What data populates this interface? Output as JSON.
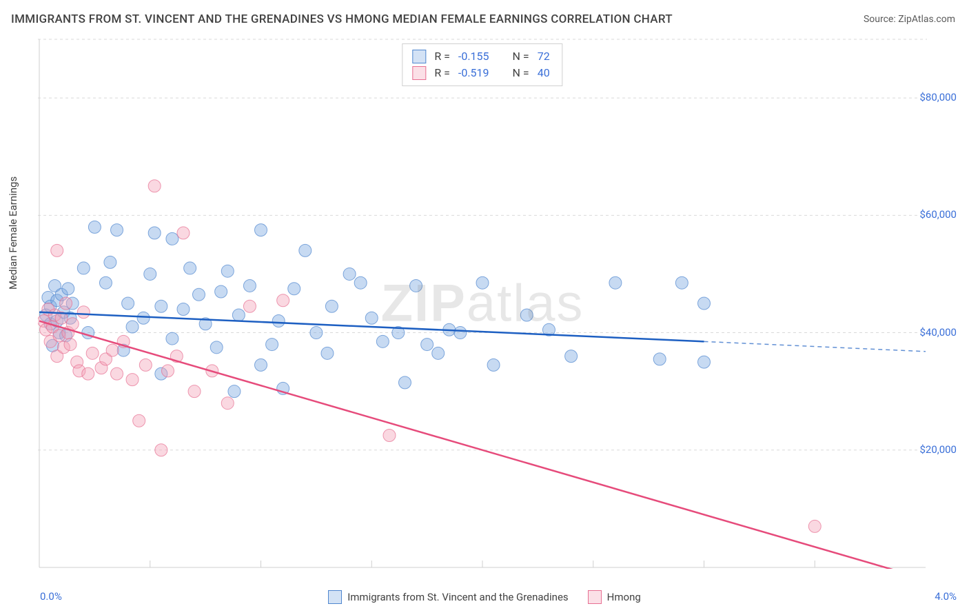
{
  "title": "IMMIGRANTS FROM ST. VINCENT AND THE GRENADINES VS HMONG MEDIAN FEMALE EARNINGS CORRELATION CHART",
  "source_label": "Source: ",
  "source_name": "ZipAtlas.com",
  "y_axis_label": "Median Female Earnings",
  "watermark": "ZIPatlas",
  "chart": {
    "type": "scatter",
    "xlim": [
      0.0,
      4.0
    ],
    "ylim": [
      0,
      90000
    ],
    "xtick_left": "0.0%",
    "xtick_right": "4.0%",
    "y_ticks": [
      {
        "value": 20000,
        "label": "$20,000"
      },
      {
        "value": 40000,
        "label": "$40,000"
      },
      {
        "value": 60000,
        "label": "$60,000"
      },
      {
        "value": 80000,
        "label": "$80,000"
      }
    ],
    "x_minor_ticks": [
      0.5,
      1.0,
      1.5,
      2.0,
      2.5,
      3.0,
      3.5
    ],
    "background_color": "#ffffff",
    "grid_color": "#d9d9d9",
    "axis_color": "#cfcfcf",
    "marker_radius": 9,
    "marker_opacity": 0.42,
    "trend_line_width": 2.5,
    "series": [
      {
        "name": "Immigrants from St. Vincent and the Grenadines",
        "legend_label": "Immigrants from St. Vincent and the Grenadines",
        "color": "#7aa8e0",
        "stroke": "#4f86cf",
        "line_color": "#1d5fc2",
        "R": -0.155,
        "N": 72,
        "trend": {
          "y_at_x0": 43500,
          "y_at_x3": 38500,
          "dash_to_x": 4.0,
          "y_at_x4": 36800
        },
        "points": [
          [
            0.03,
            43000
          ],
          [
            0.04,
            46000
          ],
          [
            0.05,
            44500
          ],
          [
            0.05,
            41500
          ],
          [
            0.06,
            37800
          ],
          [
            0.07,
            48000
          ],
          [
            0.08,
            42000
          ],
          [
            0.08,
            45500
          ],
          [
            0.09,
            40000
          ],
          [
            0.1,
            46500
          ],
          [
            0.11,
            43500
          ],
          [
            0.12,
            39500
          ],
          [
            0.13,
            47500
          ],
          [
            0.14,
            42500
          ],
          [
            0.15,
            45000
          ],
          [
            0.2,
            51000
          ],
          [
            0.22,
            40000
          ],
          [
            0.25,
            58000
          ],
          [
            0.3,
            48500
          ],
          [
            0.32,
            52000
          ],
          [
            0.35,
            57500
          ],
          [
            0.38,
            37000
          ],
          [
            0.4,
            45000
          ],
          [
            0.42,
            41000
          ],
          [
            0.47,
            42500
          ],
          [
            0.5,
            50000
          ],
          [
            0.52,
            57000
          ],
          [
            0.55,
            33000
          ],
          [
            0.55,
            44500
          ],
          [
            0.6,
            39000
          ],
          [
            0.6,
            56000
          ],
          [
            0.65,
            44000
          ],
          [
            0.68,
            51000
          ],
          [
            0.72,
            46500
          ],
          [
            0.75,
            41500
          ],
          [
            0.8,
            37500
          ],
          [
            0.82,
            47000
          ],
          [
            0.85,
            50500
          ],
          [
            0.88,
            30000
          ],
          [
            0.9,
            43000
          ],
          [
            0.95,
            48000
          ],
          [
            1.0,
            57500
          ],
          [
            1.0,
            34500
          ],
          [
            1.05,
            38000
          ],
          [
            1.08,
            42000
          ],
          [
            1.1,
            30500
          ],
          [
            1.15,
            47500
          ],
          [
            1.2,
            54000
          ],
          [
            1.25,
            40000
          ],
          [
            1.3,
            36500
          ],
          [
            1.32,
            44500
          ],
          [
            1.4,
            50000
          ],
          [
            1.45,
            48500
          ],
          [
            1.5,
            42500
          ],
          [
            1.55,
            38500
          ],
          [
            1.62,
            40000
          ],
          [
            1.65,
            31500
          ],
          [
            1.7,
            48000
          ],
          [
            1.75,
            38000
          ],
          [
            1.8,
            36500
          ],
          [
            1.85,
            40500
          ],
          [
            1.9,
            40000
          ],
          [
            2.0,
            48500
          ],
          [
            2.05,
            34500
          ],
          [
            2.2,
            43000
          ],
          [
            2.3,
            40500
          ],
          [
            2.4,
            36000
          ],
          [
            2.6,
            48500
          ],
          [
            2.8,
            35500
          ],
          [
            2.9,
            48500
          ],
          [
            3.0,
            45000
          ],
          [
            3.0,
            35000
          ]
        ]
      },
      {
        "name": "Hmong",
        "legend_label": "Hmong",
        "color": "#f3a3b8",
        "stroke": "#e76f92",
        "line_color": "#e64b7b",
        "R": -0.519,
        "N": 40,
        "trend": {
          "y_at_x0": 42000,
          "y_at_x4": -2000
        },
        "points": [
          [
            0.02,
            42000
          ],
          [
            0.03,
            40500
          ],
          [
            0.04,
            44000
          ],
          [
            0.05,
            38500
          ],
          [
            0.06,
            41000
          ],
          [
            0.07,
            43000
          ],
          [
            0.08,
            36000
          ],
          [
            0.09,
            39500
          ],
          [
            0.1,
            42500
          ],
          [
            0.11,
            37500
          ],
          [
            0.12,
            45000
          ],
          [
            0.13,
            40000
          ],
          [
            0.14,
            38000
          ],
          [
            0.08,
            54000
          ],
          [
            0.15,
            41500
          ],
          [
            0.17,
            35000
          ],
          [
            0.18,
            33500
          ],
          [
            0.2,
            43500
          ],
          [
            0.22,
            33000
          ],
          [
            0.24,
            36500
          ],
          [
            0.28,
            34000
          ],
          [
            0.3,
            35500
          ],
          [
            0.33,
            37000
          ],
          [
            0.35,
            33000
          ],
          [
            0.38,
            38500
          ],
          [
            0.42,
            32000
          ],
          [
            0.45,
            25000
          ],
          [
            0.48,
            34500
          ],
          [
            0.52,
            65000
          ],
          [
            0.55,
            20000
          ],
          [
            0.58,
            33500
          ],
          [
            0.62,
            36000
          ],
          [
            0.65,
            57000
          ],
          [
            0.7,
            30000
          ],
          [
            0.78,
            33500
          ],
          [
            0.85,
            28000
          ],
          [
            0.95,
            44500
          ],
          [
            1.1,
            45500
          ],
          [
            1.58,
            22500
          ],
          [
            3.5,
            7000
          ]
        ]
      }
    ]
  },
  "stats_labels": {
    "R": "R =",
    "N": "N ="
  }
}
